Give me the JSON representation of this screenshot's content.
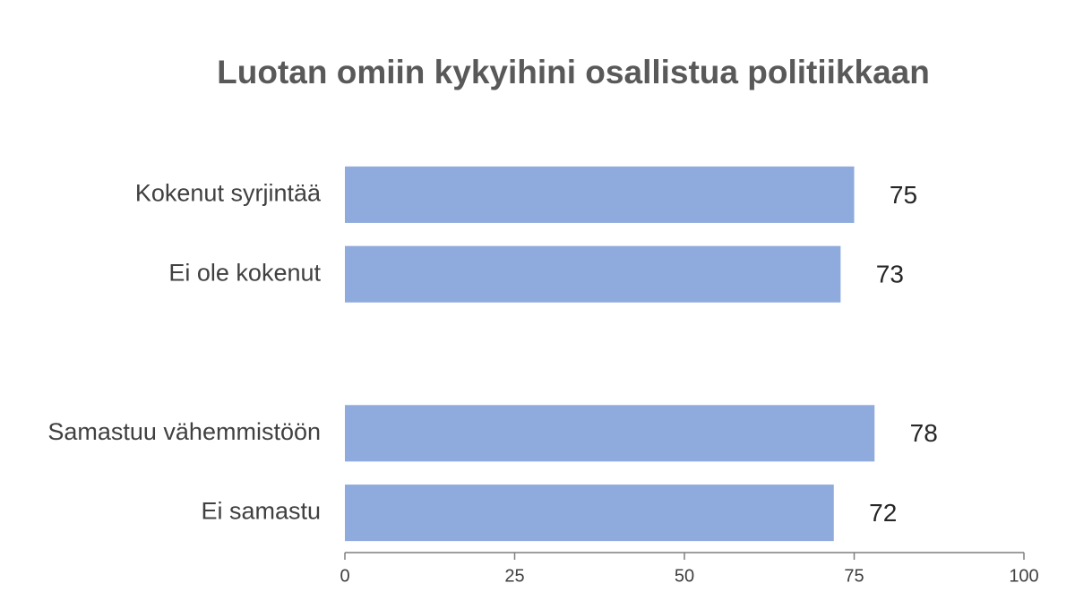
{
  "chart_data": {
    "type": "barh",
    "title": "Luotan omiin kykyihini osallistua politiikkaan",
    "categories": [
      "Kokenut syrjintää",
      "Ei ole kokenut",
      null,
      "Samastuu vähemmistöön",
      "Ei samastu"
    ],
    "values": [
      75,
      73,
      null,
      78,
      72
    ],
    "color": "#8faadc",
    "xlim": [
      0,
      100
    ],
    "xticks": [
      0,
      25,
      50,
      75,
      100
    ],
    "grid": false
  }
}
